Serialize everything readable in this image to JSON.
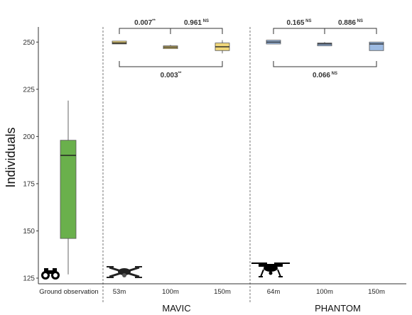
{
  "chart_data": {
    "type": "box",
    "ylabel": "Individuals",
    "ylim": [
      122,
      258
    ],
    "yticks": [
      125,
      150,
      175,
      200,
      225,
      250
    ],
    "categories": [
      "Ground observation",
      "53m",
      "100m",
      "150m",
      "64m",
      "100m",
      "150m"
    ],
    "groups": [
      {
        "name": "MAVIC",
        "categories": [
          1,
          2,
          3
        ]
      },
      {
        "name": "PHANTOM",
        "categories": [
          4,
          5,
          6
        ]
      }
    ],
    "boxes": [
      {
        "category": "Ground observation",
        "min": 127,
        "q1": 146,
        "median": 190,
        "q3": 198,
        "max": 219,
        "color": "#6ab04c"
      },
      {
        "category": "53m",
        "min": 249,
        "q1": 249,
        "median": 249.5,
        "q3": 250.5,
        "max": 250.5,
        "color": "#f0d77a"
      },
      {
        "category": "100m",
        "min": 246.5,
        "q1": 246.5,
        "median": 247.3,
        "q3": 248,
        "max": 248.5,
        "color": "#f0d77a"
      },
      {
        "category": "150m",
        "min": 244,
        "q1": 245.5,
        "median": 247.5,
        "q3": 249.5,
        "max": 251,
        "color": "#f0d77a"
      },
      {
        "category": "64m",
        "min": 249,
        "q1": 249,
        "median": 250,
        "q3": 251,
        "max": 251,
        "color": "#9dbbe3"
      },
      {
        "category": "100m",
        "min": 248,
        "q1": 248,
        "median": 249,
        "q3": 249.5,
        "max": 250,
        "color": "#9dbbe3"
      },
      {
        "category": "150m",
        "min": 245.5,
        "q1": 245.5,
        "median": 249,
        "q3": 250,
        "max": 250,
        "color": "#9dbbe3"
      }
    ],
    "comparisons": [
      {
        "from": 1,
        "to": 2,
        "p": "0.007",
        "sig": "**",
        "position": "above"
      },
      {
        "from": 2,
        "to": 3,
        "p": "0.961",
        "sig": "NS",
        "position": "above"
      },
      {
        "from": 1,
        "to": 3,
        "p": "0.003",
        "sig": "**",
        "position": "below"
      },
      {
        "from": 4,
        "to": 5,
        "p": "0.165",
        "sig": "NS",
        "position": "above"
      },
      {
        "from": 5,
        "to": 6,
        "p": "0.886",
        "sig": "NS",
        "position": "above"
      },
      {
        "from": 4,
        "to": 6,
        "p": "0.066",
        "sig": "NS",
        "position": "below"
      }
    ],
    "icons": [
      "binoculars-icon",
      "mavic-drone-icon",
      "phantom-drone-icon"
    ],
    "grid": false,
    "separators": "dashed"
  }
}
